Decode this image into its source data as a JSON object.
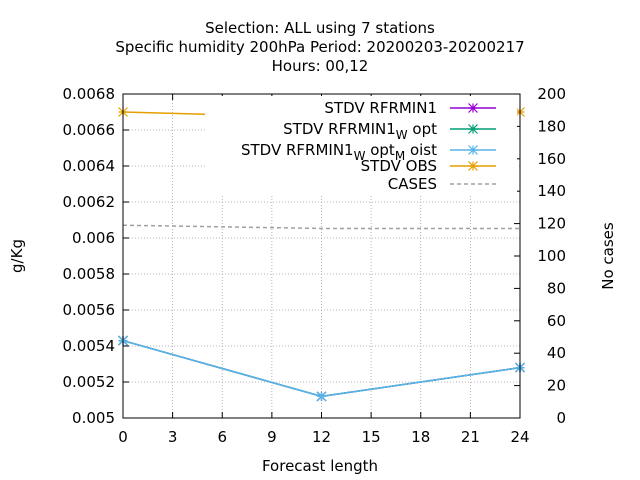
{
  "chart_data": {
    "type": "line",
    "title_lines": [
      "Selection: ALL using     7 stations",
      "Specific humidity 200hPa   Period: 20200203-20200217",
      "Hours:  00,12"
    ],
    "xlabel": "Forecast length",
    "ylabel": "g/Kg",
    "y2label": "No cases",
    "x": [
      0,
      12,
      24
    ],
    "xlim": [
      0,
      24
    ],
    "xticks": [
      0,
      3,
      6,
      9,
      12,
      15,
      18,
      21,
      24
    ],
    "ylim": [
      0.005,
      0.0068
    ],
    "yticks": [
      "0.005",
      "0.0052",
      "0.0054",
      "0.0056",
      "0.0058",
      "0.006",
      "0.0062",
      "0.0064",
      "0.0066",
      "0.0068"
    ],
    "y2lim": [
      0,
      200
    ],
    "y2ticks": [
      0,
      20,
      40,
      60,
      80,
      100,
      120,
      140,
      160,
      180,
      200
    ],
    "grid": true,
    "legend_position": "top-right",
    "series": [
      {
        "name": "STDV RFRMIN1",
        "name_parts": [
          [
            "STDV RFRMIN1",
            "n"
          ]
        ],
        "color": "#9400d3",
        "marker": "star",
        "axis": "y",
        "values": [
          0.00543,
          0.00512,
          0.00528
        ]
      },
      {
        "name": "STDV RFRMIN1 W opt",
        "name_parts": [
          [
            "STDV RFRMIN1",
            "n"
          ],
          [
            "W",
            "sub"
          ],
          [
            "opt",
            "n"
          ]
        ],
        "color": "#009e73",
        "marker": "star",
        "axis": "y",
        "values": [
          0.00543,
          0.00512,
          0.00528
        ]
      },
      {
        "name": "STDV RFRMIN1 W opt M oist",
        "name_parts": [
          [
            "STDV RFRMIN1",
            "n"
          ],
          [
            "W",
            "sub"
          ],
          [
            "opt",
            "n"
          ],
          [
            "M",
            "sub"
          ],
          [
            "oist",
            "n"
          ]
        ],
        "color": "#56b4e9",
        "marker": "star",
        "axis": "y",
        "values": [
          0.00543,
          0.00512,
          0.00528
        ]
      },
      {
        "name": "STDV OBS",
        "name_parts": [
          [
            "STDV OBS",
            "n"
          ]
        ],
        "color": "#e69f00",
        "marker": "star",
        "axis": "y",
        "values": [
          0.0067,
          0.00667,
          0.0067
        ]
      },
      {
        "name": "CASES",
        "name_parts": [
          [
            "CASES",
            "n"
          ]
        ],
        "color": "#a0a0a0",
        "marker": "none",
        "dashed": true,
        "axis": "y2",
        "values": [
          119,
          117,
          117
        ]
      }
    ]
  }
}
